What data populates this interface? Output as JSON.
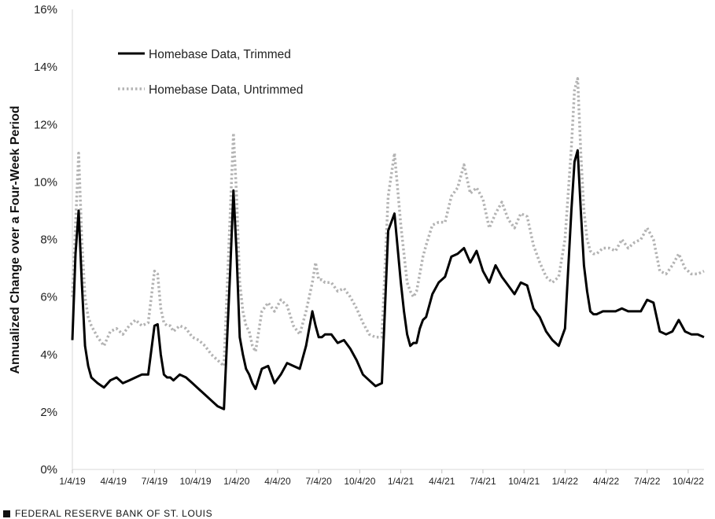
{
  "source": {
    "label": "FEDERAL RESERVE BANK OF ST. LOUIS"
  },
  "chart_data": {
    "type": "line",
    "title": "",
    "xlabel": "",
    "ylabel": "Annualized Change over a Four-Week Period",
    "ylim": [
      0,
      16
    ],
    "yticks": [
      0,
      2,
      4,
      6,
      8,
      10,
      12,
      14,
      16
    ],
    "ytick_labels": [
      "0%",
      "2%",
      "4%",
      "6%",
      "8%",
      "10%",
      "12%",
      "14%",
      "16%"
    ],
    "grid": false,
    "legend": "top-left",
    "x_unit": "weeks since 1/4/19",
    "xlim": [
      0,
      200
    ],
    "xticks": [
      0,
      13,
      26,
      39,
      52,
      65,
      78,
      91,
      104,
      117,
      130,
      143,
      156,
      169,
      182,
      195
    ],
    "xtick_labels": [
      "1/4/19",
      "4/4/19",
      "7/4/19",
      "10/4/19",
      "1/4/20",
      "4/4/20",
      "7/4/20",
      "10/4/20",
      "1/4/21",
      "4/4/21",
      "7/4/21",
      "10/4/21",
      "1/4/22",
      "4/4/22",
      "7/4/22",
      "10/4/22"
    ],
    "series": [
      {
        "name": "Homebase Data, Trimmed",
        "style": "solid",
        "color": "#000000",
        "x": [
          0,
          1,
          2,
          3,
          4,
          5,
          6,
          7,
          8,
          10,
          12,
          14,
          16,
          18,
          20,
          22,
          24,
          26,
          27,
          28,
          29,
          30,
          31,
          32,
          34,
          36,
          38,
          40,
          42,
          44,
          46,
          48,
          50,
          51,
          52,
          53,
          54,
          55,
          56,
          57,
          58,
          60,
          62,
          64,
          66,
          68,
          70,
          72,
          74,
          76,
          77,
          78,
          79,
          80,
          82,
          84,
          86,
          88,
          90,
          92,
          94,
          96,
          98,
          100,
          102,
          104,
          105,
          106,
          107,
          108,
          109,
          110,
          111,
          112,
          114,
          116,
          118,
          120,
          122,
          124,
          126,
          128,
          130,
          132,
          134,
          136,
          138,
          140,
          142,
          144,
          146,
          148,
          150,
          152,
          154,
          156,
          158,
          159,
          160,
          161,
          162,
          163,
          164,
          165,
          166,
          168,
          170,
          172,
          174,
          176,
          178,
          180,
          182,
          184,
          186,
          188,
          190,
          192,
          194,
          196,
          198,
          200
        ],
        "values": [
          4.5,
          7.5,
          9.0,
          6.5,
          4.3,
          3.6,
          3.2,
          3.1,
          3.0,
          2.85,
          3.1,
          3.2,
          3.0,
          3.1,
          3.2,
          3.3,
          3.3,
          5.0,
          5.05,
          4.0,
          3.3,
          3.2,
          3.2,
          3.1,
          3.3,
          3.2,
          3.0,
          2.8,
          2.6,
          2.4,
          2.2,
          2.1,
          7.0,
          9.7,
          7.5,
          4.6,
          4.0,
          3.5,
          3.3,
          3.0,
          2.8,
          3.5,
          3.6,
          3.0,
          3.3,
          3.7,
          3.6,
          3.5,
          4.3,
          5.5,
          5.0,
          4.6,
          4.6,
          4.7,
          4.7,
          4.4,
          4.5,
          4.2,
          3.8,
          3.3,
          3.1,
          2.9,
          3.0,
          8.3,
          8.9,
          6.5,
          5.5,
          4.7,
          4.3,
          4.4,
          4.4,
          4.9,
          5.2,
          5.3,
          6.1,
          6.5,
          6.7,
          7.4,
          7.5,
          7.7,
          7.2,
          7.6,
          6.9,
          6.5,
          7.1,
          6.7,
          6.4,
          6.1,
          6.5,
          6.4,
          5.6,
          5.3,
          4.8,
          4.5,
          4.3,
          4.9,
          9.0,
          10.7,
          11.1,
          9.0,
          7.1,
          6.2,
          5.5,
          5.4,
          5.4,
          5.5,
          5.5,
          5.5,
          5.6,
          5.5,
          5.5,
          5.5,
          5.9,
          5.8,
          4.8,
          4.7,
          4.8,
          5.2,
          4.8,
          4.7,
          4.7,
          4.6
        ]
      },
      {
        "name": "Homebase Data, Untrimmed",
        "style": "dotted",
        "color": "#b3b3b3",
        "x": [
          0,
          1,
          2,
          3,
          4,
          5,
          6,
          7,
          8,
          10,
          12,
          14,
          16,
          18,
          20,
          22,
          24,
          26,
          27,
          28,
          29,
          30,
          31,
          32,
          34,
          36,
          38,
          40,
          42,
          44,
          46,
          48,
          50,
          51,
          52,
          53,
          54,
          55,
          56,
          57,
          58,
          60,
          62,
          64,
          66,
          68,
          70,
          72,
          74,
          76,
          77,
          78,
          79,
          80,
          82,
          84,
          86,
          88,
          90,
          92,
          94,
          96,
          98,
          100,
          102,
          104,
          105,
          106,
          107,
          108,
          109,
          110,
          111,
          112,
          114,
          116,
          118,
          120,
          122,
          124,
          126,
          128,
          130,
          132,
          134,
          136,
          138,
          140,
          142,
          144,
          146,
          148,
          150,
          152,
          154,
          156,
          158,
          159,
          160,
          161,
          162,
          163,
          164,
          165,
          166,
          168,
          170,
          172,
          174,
          176,
          178,
          180,
          182,
          184,
          186,
          188,
          190,
          192,
          194,
          196,
          198,
          200
        ],
        "values": [
          6.0,
          8.5,
          11.0,
          8.0,
          6.0,
          5.3,
          5.0,
          4.8,
          4.6,
          4.3,
          4.8,
          4.9,
          4.7,
          5.0,
          5.2,
          5.0,
          5.1,
          6.9,
          6.8,
          5.6,
          5.1,
          5.0,
          5.0,
          4.8,
          5.0,
          4.9,
          4.6,
          4.5,
          4.3,
          4.0,
          3.8,
          3.6,
          9.0,
          11.7,
          9.5,
          6.5,
          5.5,
          5.0,
          4.8,
          4.3,
          4.1,
          5.5,
          5.8,
          5.5,
          5.9,
          5.7,
          5.0,
          4.7,
          5.5,
          6.5,
          7.2,
          6.6,
          6.6,
          6.5,
          6.5,
          6.2,
          6.3,
          6.0,
          5.6,
          5.1,
          4.7,
          4.6,
          4.6,
          9.5,
          11.0,
          8.5,
          7.5,
          6.5,
          6.2,
          6.0,
          6.2,
          6.8,
          7.4,
          7.8,
          8.5,
          8.6,
          8.6,
          9.5,
          9.8,
          10.6,
          9.6,
          9.8,
          9.4,
          8.4,
          8.9,
          9.3,
          8.7,
          8.4,
          8.9,
          8.8,
          7.8,
          7.2,
          6.7,
          6.5,
          6.7,
          8.0,
          11.2,
          13.2,
          13.6,
          11.0,
          9.0,
          8.0,
          7.6,
          7.5,
          7.5,
          7.7,
          7.7,
          7.6,
          8.0,
          7.7,
          7.9,
          8.0,
          8.4,
          8.0,
          6.9,
          6.8,
          7.1,
          7.5,
          7.0,
          6.8,
          6.8,
          6.9
        ]
      }
    ]
  }
}
